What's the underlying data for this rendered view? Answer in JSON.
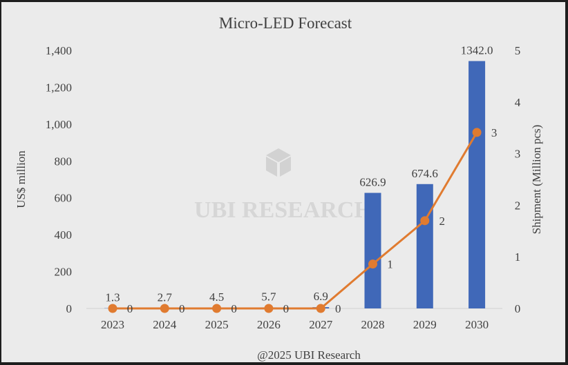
{
  "chart_data": {
    "type": "bar+line",
    "title": "Micro-LED Forecast",
    "categories": [
      "2023",
      "2024",
      "2025",
      "2026",
      "2027",
      "2028",
      "2029",
      "2030"
    ],
    "series": [
      {
        "type": "bar",
        "axis": "left",
        "values": [
          1.3,
          2.7,
          4.5,
          5.7,
          6.9,
          626.9,
          674.6,
          1342.0
        ],
        "labels": [
          "1.3",
          "2.7",
          "4.5",
          "5.7",
          "6.9",
          "626.9",
          "674.6",
          "1342.0"
        ],
        "color": "#4068b8"
      },
      {
        "type": "line",
        "axis": "right",
        "values": [
          0,
          0,
          0,
          0,
          0,
          0.86,
          1.7,
          3.41
        ],
        "labels": [
          "0",
          "0",
          "0",
          "0",
          "0",
          "1",
          "2",
          "3"
        ],
        "color": "#e07b30"
      }
    ],
    "ylabel": "US$ million",
    "ylim": [
      0,
      1400
    ],
    "yticks": [
      "0",
      "200",
      "400",
      "600",
      "800",
      "1,000",
      "1,200",
      "1,400"
    ],
    "y2label": "Shipment (Million pcs)",
    "y2lim": [
      0,
      5
    ],
    "y2ticks": [
      "0",
      "1",
      "2",
      "3",
      "4",
      "5"
    ],
    "grid": false,
    "watermark": "UBI RESEARCH",
    "footer": "@2025 UBI Research"
  }
}
